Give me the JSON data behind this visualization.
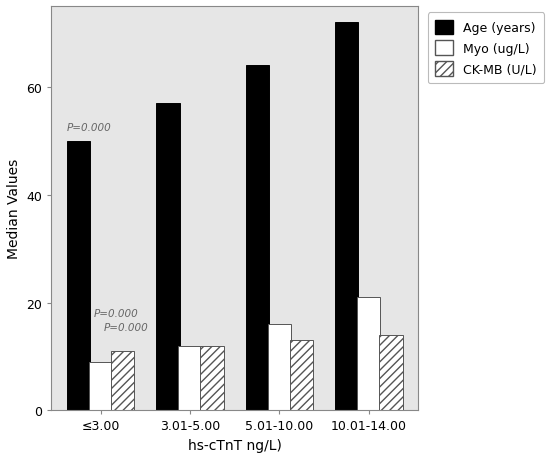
{
  "categories": [
    "≤3.00",
    "3.01-5.00",
    "5.01-10.00",
    "10.01-14.00"
  ],
  "age_values": [
    50,
    57,
    64,
    72
  ],
  "myo_values": [
    9,
    12,
    16,
    21
  ],
  "ckmb_values": [
    11,
    12,
    13,
    14
  ],
  "xlabel": "hs-cTnT ng/L)",
  "ylabel": "Median Values",
  "ylim": [
    0,
    75
  ],
  "yticks": [
    0,
    20,
    40,
    60
  ],
  "bg_color": "#e6e6e6",
  "legend_labels": [
    "Age (years)",
    "Myo (ug/L)",
    "CK-MB (U/L)"
  ],
  "ann_age": {
    "text": "P=0.000",
    "xoff": -0.38,
    "y": 52
  },
  "ann_myo": {
    "text": "P=0.000",
    "xoff": -0.08,
    "y": 17.5
  },
  "ann_ckmb": {
    "text": "P=0.000",
    "xoff": 0.04,
    "y": 15.0
  },
  "bar_width": 0.26,
  "hatch_density": "////"
}
